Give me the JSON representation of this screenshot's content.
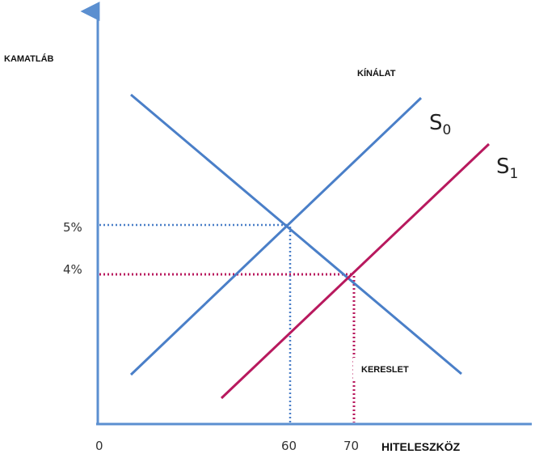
{
  "axes": {
    "y_label": "KAMATLÁB",
    "x_label": "HITELESZKÖZ",
    "origin_label": "0"
  },
  "ticks": {
    "y": [
      {
        "label": "5%",
        "value": 5
      },
      {
        "label": "4%",
        "value": 4
      }
    ],
    "x": [
      {
        "label": "60",
        "value": 60
      },
      {
        "label": "70",
        "value": 70
      }
    ]
  },
  "curves": {
    "supply_title": "KÍNÁLAT",
    "demand_title": "KERESLET",
    "s0": {
      "letter": "S",
      "sub": "0"
    },
    "s1": {
      "letter": "S",
      "sub": "1"
    }
  },
  "colors": {
    "blue": "#4a7fc8",
    "magenta": "#b8195e",
    "axis": "#5b8fd0"
  },
  "equilibria": [
    {
      "name": "initial",
      "quantity": 60,
      "rate_percent": 5
    },
    {
      "name": "after-shift",
      "quantity": 70,
      "rate_percent": 4
    }
  ]
}
